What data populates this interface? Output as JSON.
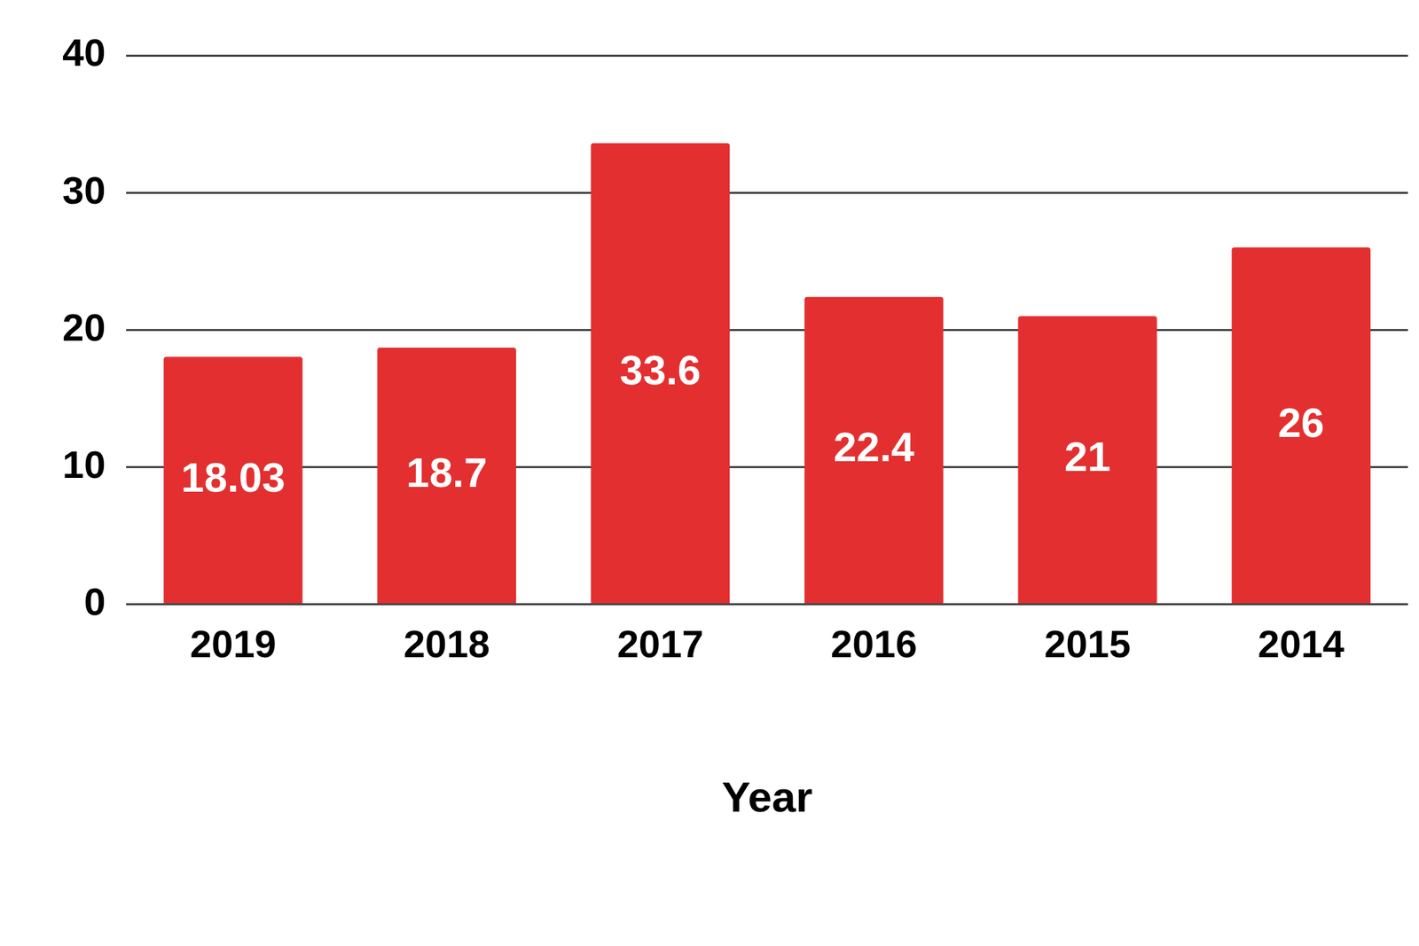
{
  "chart_data": {
    "type": "bar",
    "x_label": "Year",
    "categories": [
      "2019",
      "2018",
      "2017",
      "2016",
      "2015",
      "2014"
    ],
    "values": [
      18.03,
      18.7,
      33.6,
      22.4,
      21,
      26
    ],
    "color": "#e32f2f",
    "ylim": [
      0,
      40
    ],
    "yticks": [
      0,
      10,
      20,
      30,
      40
    ],
    "grid": true,
    "data_labels": true
  }
}
